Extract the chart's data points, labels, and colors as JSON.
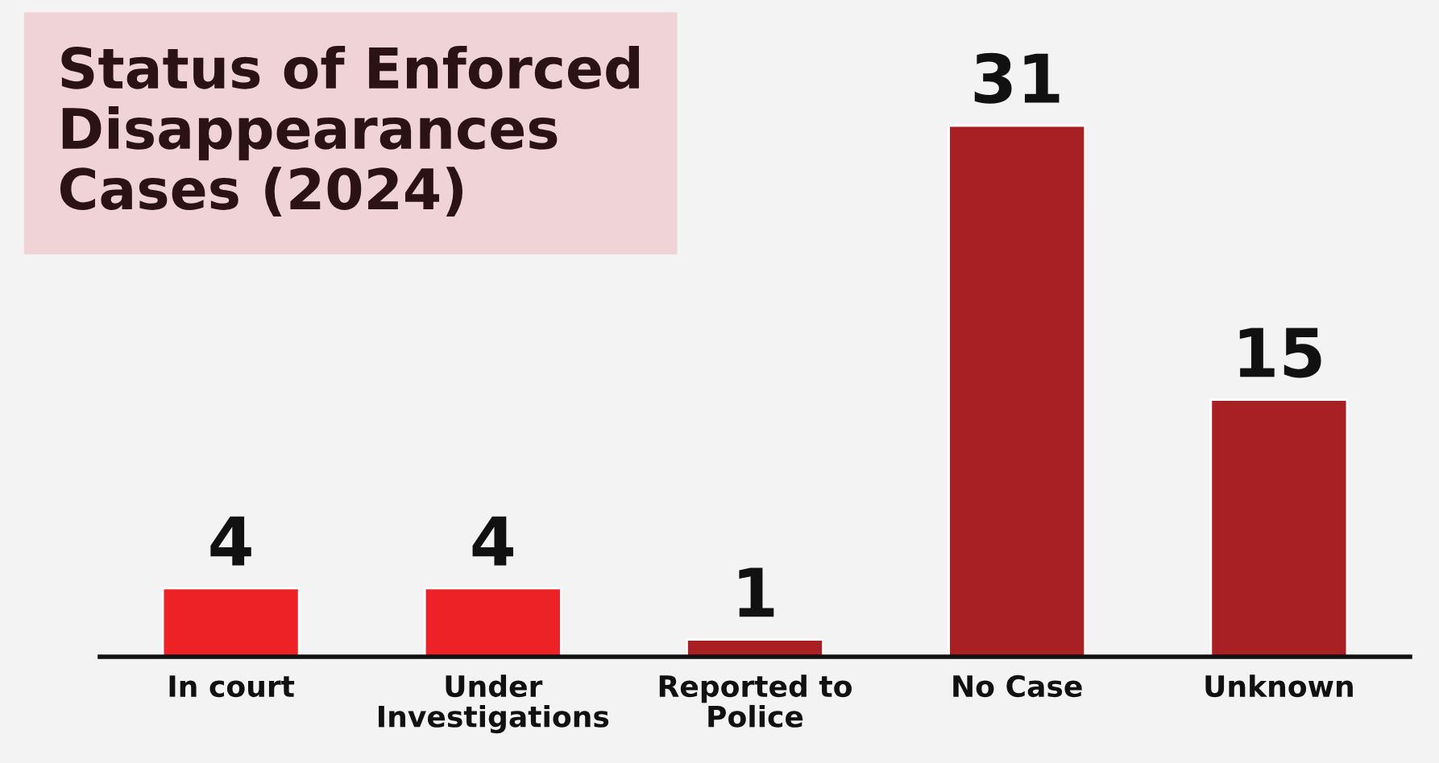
{
  "chart_data": {
    "type": "bar",
    "title": "Status of Enforced\nDisappearances\nCases (2024)",
    "categories": [
      "In court",
      "Under\nInvestigations",
      "Reported to\nPolice",
      "No Case",
      "Unknown"
    ],
    "values": [
      4,
      4,
      1,
      31,
      15
    ],
    "colors": [
      "#ec2227",
      "#ec2227",
      "#a81f24",
      "#a81f24",
      "#a81f24"
    ],
    "data_labels": true,
    "grid": false,
    "legend": false
  }
}
